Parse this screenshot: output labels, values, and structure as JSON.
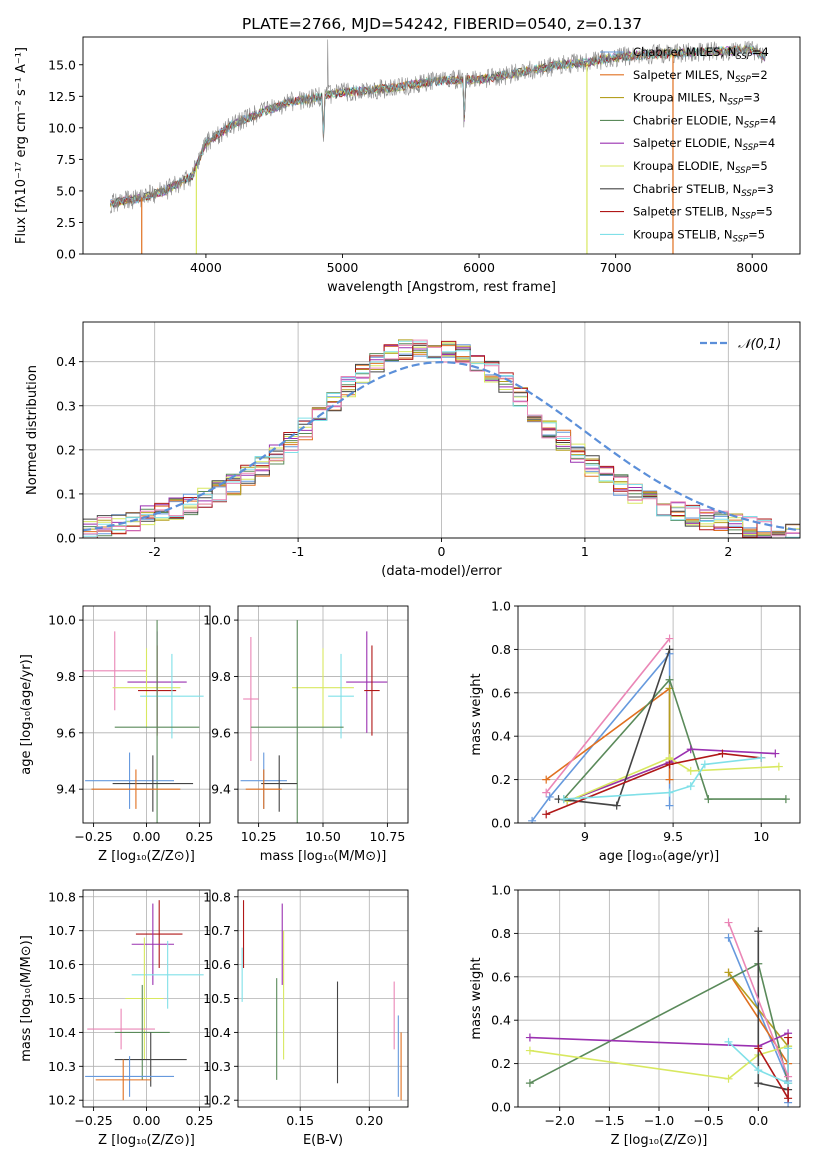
{
  "figure_title": "PLATE=2766, MJD=54242, FIBERID=0540, z=0.137",
  "colors": {
    "Chabrier MILES": "#6699dd",
    "Salpeter MILES": "#e07020",
    "Kroupa MILES": "#b5a020",
    "Chabrier ELODIE": "#5a8a5a",
    "Salpeter ELODIE": "#9a30b0",
    "Kroupa ELODIE": "#d8e860",
    "Chabrier STELIB": "#444444",
    "Salpeter STELIB": "#b01818",
    "Kroupa STELIB": "#80e0e8",
    "Pink": "#ea86b6",
    "Normal": "#5b8fd9",
    "Data": "#808080"
  },
  "chart_data": [
    {
      "id": "spectrum",
      "type": "line",
      "title": "PLATE=2766, MJD=54242, FIBERID=0540, z=0.137",
      "xlabel": "wavelength [Angstrom, rest frame]",
      "ylabel": "Flux [fλ10⁻¹⁷ erg cm⁻² s⁻¹ A⁻¹]",
      "xlim": [
        3100,
        8350
      ],
      "ylim": [
        0,
        17.2
      ],
      "xticks": [
        4000,
        5000,
        6000,
        7000,
        8000
      ],
      "yticks": [
        0.0,
        2.5,
        5.0,
        7.5,
        10.0,
        12.5,
        15.0
      ],
      "legend_position": "top-right",
      "legend": [
        {
          "label": "Chabrier MILES, N_SSP=4",
          "main": "Chabrier MILES, N",
          "sub": "SSP",
          "tail": "=4",
          "color": "Chabrier MILES"
        },
        {
          "label": "Salpeter MILES, N_SSP=2",
          "main": "Salpeter MILES, N",
          "sub": "SSP",
          "tail": "=2",
          "color": "Salpeter MILES"
        },
        {
          "label": "Kroupa MILES, N_SSP=3",
          "main": "Kroupa MILES, N",
          "sub": "SSP",
          "tail": "=3",
          "color": "Kroupa MILES"
        },
        {
          "label": "Chabrier ELODIE, N_SSP=4",
          "main": "Chabrier ELODIE, N",
          "sub": "SSP",
          "tail": "=4",
          "color": "Chabrier ELODIE"
        },
        {
          "label": "Salpeter ELODIE, N_SSP=4",
          "main": "Salpeter ELODIE, N",
          "sub": "SSP",
          "tail": "=4",
          "color": "Salpeter ELODIE"
        },
        {
          "label": "Kroupa ELODIE, N_SSP=5",
          "main": "Kroupa ELODIE, N",
          "sub": "SSP",
          "tail": "=5",
          "color": "Kroupa ELODIE"
        },
        {
          "label": "Chabrier STELIB, N_SSP=3",
          "main": "Chabrier STELIB, N",
          "sub": "SSP",
          "tail": "=3",
          "color": "Chabrier STELIB"
        },
        {
          "label": "Salpeter STELIB, N_SSP=5",
          "main": "Salpeter STELIB, N",
          "sub": "SSP",
          "tail": "=5",
          "color": "Salpeter STELIB"
        },
        {
          "label": "Kroupa STELIB, N_SSP=5",
          "main": "Kroupa STELIB, N",
          "sub": "SSP",
          "tail": "=5",
          "color": "Kroupa STELIB"
        }
      ],
      "continuum": {
        "x": [
          3300,
          3500,
          3700,
          3900,
          4000,
          4200,
          4400,
          4600,
          4800,
          5000,
          5200,
          5400,
          5600,
          5800,
          6000,
          6200,
          6400,
          6600,
          6800,
          7000,
          7200,
          7400,
          7600,
          8000,
          8100
        ],
        "y": [
          4.0,
          4.4,
          5.0,
          6.2,
          8.8,
          10.3,
          11.2,
          12.0,
          12.4,
          12.8,
          13.0,
          13.2,
          13.6,
          13.8,
          13.8,
          14.2,
          14.6,
          15.0,
          15.2,
          15.6,
          15.8,
          15.9,
          16.0,
          16.2,
          15.6
        ]
      },
      "dips": [
        {
          "x": 3530,
          "y": 0.0,
          "series": "Salpeter MILES"
        },
        {
          "x": 3930,
          "y": 0.0,
          "series": "Kroupa ELODIE"
        },
        {
          "x": 6790,
          "y": 0.0,
          "series": "Kroupa ELODIE"
        },
        {
          "x": 7420,
          "y": 0.0,
          "series": "Salpeter MILES"
        }
      ]
    },
    {
      "id": "residuals",
      "type": "histogram",
      "xlabel": "(data-model)/error",
      "ylabel": "Normed distribution",
      "xlim": [
        -2.5,
        2.5
      ],
      "ylim": [
        0,
        0.49
      ],
      "xticks": [
        -2,
        -1,
        0,
        1,
        2
      ],
      "yticks": [
        0.0,
        0.1,
        0.2,
        0.3,
        0.4
      ],
      "grid": true,
      "legend_position": "top-right",
      "legend": [
        {
          "label": "𝒩(0,1)",
          "color": "Normal"
        }
      ],
      "bin_edges": [
        -2.5,
        -2.4,
        -2.3,
        -2.2,
        -2.1,
        -2.0,
        -1.9,
        -1.8,
        -1.7,
        -1.6,
        -1.5,
        -1.4,
        -1.3,
        -1.2,
        -1.1,
        -1.0,
        -0.9,
        -0.8,
        -0.7,
        -0.6,
        -0.5,
        -0.4,
        -0.3,
        -0.2,
        -0.1,
        0.0,
        0.1,
        0.2,
        0.3,
        0.4,
        0.5,
        0.6,
        0.7,
        0.8,
        0.9,
        1.0,
        1.1,
        1.2,
        1.3,
        1.4,
        1.5,
        1.6,
        1.7,
        1.8,
        1.9,
        2.0,
        2.1,
        2.2,
        2.3,
        2.4,
        2.5
      ],
      "base_density": [
        0.022,
        0.028,
        0.033,
        0.04,
        0.048,
        0.057,
        0.067,
        0.078,
        0.09,
        0.105,
        0.123,
        0.142,
        0.165,
        0.19,
        0.218,
        0.248,
        0.28,
        0.312,
        0.342,
        0.37,
        0.395,
        0.415,
        0.428,
        0.433,
        0.43,
        0.424,
        0.415,
        0.4,
        0.378,
        0.35,
        0.318,
        0.285,
        0.252,
        0.22,
        0.19,
        0.163,
        0.14,
        0.12,
        0.102,
        0.087,
        0.073,
        0.061,
        0.051,
        0.043,
        0.036,
        0.03,
        0.025,
        0.021,
        0.018,
        0.015
      ],
      "series": [
        "Chabrier MILES",
        "Salpeter MILES",
        "Kroupa MILES",
        "Chabrier ELODIE",
        "Salpeter ELODIE",
        "Kroupa ELODIE",
        "Chabrier STELIB",
        "Salpeter STELIB",
        "Kroupa STELIB",
        "Pink"
      ]
    },
    {
      "id": "age_vs_Z",
      "type": "errorbar",
      "xlabel": "Z [log₁₀(Z/Z⊙)]",
      "ylabel": "age  [log₁₀(age/yr)]",
      "xlim": [
        -0.3,
        0.3
      ],
      "ylim": [
        9.28,
        10.05
      ],
      "xticks": [
        -0.25,
        0.0,
        0.25
      ],
      "xticklabels": [
        "−0.25",
        "0.00",
        "0.25"
      ],
      "yticks": [
        9.4,
        9.6,
        9.8,
        10.0
      ],
      "grid": true,
      "points": [
        {
          "series": "Pink",
          "x": -0.15,
          "xerr": 0.15,
          "y": 9.82,
          "yerr": 0.14
        },
        {
          "series": "Salpeter ELODIE",
          "x": 0.05,
          "xerr": 0.14,
          "y": 9.78,
          "yerr": 0.18
        },
        {
          "series": "Kroupa ELODIE",
          "x": 0.0,
          "xerr": 0.16,
          "y": 9.76,
          "yerr": 0.14
        },
        {
          "series": "Salpeter STELIB",
          "x": 0.05,
          "xerr": 0.09,
          "y": 9.75,
          "yerr": 0.16
        },
        {
          "series": "Kroupa STELIB",
          "x": 0.12,
          "xerr": 0.15,
          "y": 9.73,
          "yerr": 0.15
        },
        {
          "series": "Chabrier ELODIE",
          "x": 0.05,
          "xerr": 0.2,
          "y": 9.62,
          "yerr": 0.38
        },
        {
          "series": "Chabrier MILES",
          "x": -0.08,
          "xerr": 0.21,
          "y": 9.43,
          "yerr": 0.1
        },
        {
          "series": "Chabrier STELIB",
          "x": 0.03,
          "xerr": 0.19,
          "y": 9.42,
          "yerr": 0.1
        },
        {
          "series": "Salpeter MILES",
          "x": -0.05,
          "xerr": 0.21,
          "y": 9.4,
          "yerr": 0.07
        }
      ]
    },
    {
      "id": "age_vs_mass",
      "type": "errorbar",
      "xlabel": "mass [log₁₀(M/M⊙)]",
      "xlim": [
        10.17,
        10.83
      ],
      "ylim": [
        9.28,
        10.05
      ],
      "xticks": [
        10.25,
        10.5,
        10.75
      ],
      "xticklabels": [
        "10.25",
        "10.50",
        "10.75"
      ],
      "yticks": [
        9.4,
        9.6,
        9.8,
        10.0
      ],
      "grid": true,
      "points": [
        {
          "series": "Pink",
          "x": 10.22,
          "xerr": 0.03,
          "y": 9.72,
          "yerr": 0.22
        },
        {
          "series": "Salpeter ELODIE",
          "x": 10.67,
          "xerr": 0.08,
          "y": 9.78,
          "yerr": 0.18
        },
        {
          "series": "Kroupa ELODIE",
          "x": 10.5,
          "xerr": 0.12,
          "y": 9.76,
          "yerr": 0.14
        },
        {
          "series": "Salpeter STELIB",
          "x": 10.69,
          "xerr": 0.03,
          "y": 9.75,
          "yerr": 0.16
        },
        {
          "series": "Kroupa STELIB",
          "x": 10.57,
          "xerr": 0.05,
          "y": 9.73,
          "yerr": 0.15
        },
        {
          "series": "Chabrier ELODIE",
          "x": 10.4,
          "xerr": 0.18,
          "y": 9.62,
          "yerr": 0.38
        },
        {
          "series": "Chabrier MILES",
          "x": 10.27,
          "xerr": 0.09,
          "y": 9.43,
          "yerr": 0.1
        },
        {
          "series": "Chabrier STELIB",
          "x": 10.33,
          "xerr": 0.07,
          "y": 9.42,
          "yerr": 0.1
        },
        {
          "series": "Salpeter MILES",
          "x": 10.27,
          "xerr": 0.07,
          "y": 9.4,
          "yerr": 0.07
        }
      ]
    },
    {
      "id": "weight_vs_age",
      "type": "line",
      "xlabel": "age  [log₁₀(age/yr)]",
      "ylabel": "mass weight",
      "xlim": [
        8.62,
        10.22
      ],
      "ylim": [
        0,
        1.0
      ],
      "xticks": [
        9.0,
        9.5,
        10.0
      ],
      "yticks": [
        0.0,
        0.2,
        0.4,
        0.6,
        0.8,
        1.0
      ],
      "grid": true,
      "series": [
        {
          "color": "Chabrier MILES",
          "x": [
            8.7,
            8.8,
            9.48,
            9.48
          ],
          "y": [
            0.01,
            0.12,
            0.78,
            0.08
          ]
        },
        {
          "color": "Salpeter MILES",
          "x": [
            8.78,
            9.48,
            9.48
          ],
          "y": [
            0.2,
            0.62,
            0.2
          ]
        },
        {
          "color": "Kroupa MILES",
          "x": [
            8.9,
            9.48,
            9.48
          ],
          "y": [
            0.1,
            0.28,
            0.62
          ]
        },
        {
          "color": "Chabrier ELODIE",
          "x": [
            8.88,
            9.48,
            9.7,
            10.14
          ],
          "y": [
            0.11,
            0.66,
            0.11,
            0.11
          ]
        },
        {
          "color": "Salpeter ELODIE",
          "x": [
            8.9,
            9.48,
            9.6,
            10.08
          ],
          "y": [
            0.1,
            0.28,
            0.34,
            0.32
          ]
        },
        {
          "color": "Kroupa ELODIE",
          "x": [
            8.9,
            9.48,
            9.6,
            10.1
          ],
          "y": [
            0.1,
            0.3,
            0.24,
            0.26
          ]
        },
        {
          "color": "Chabrier STELIB",
          "x": [
            8.85,
            9.18,
            9.48
          ],
          "y": [
            0.11,
            0.08,
            0.8
          ]
        },
        {
          "color": "Salpeter STELIB",
          "x": [
            8.78,
            9.48,
            9.78,
            10.0
          ],
          "y": [
            0.04,
            0.27,
            0.32,
            0.3
          ]
        },
        {
          "color": "Kroupa STELIB",
          "x": [
            8.88,
            9.48,
            9.6,
            9.68,
            10.0
          ],
          "y": [
            0.11,
            0.14,
            0.17,
            0.27,
            0.3
          ]
        },
        {
          "color": "Pink",
          "x": [
            8.78,
            9.48
          ],
          "y": [
            0.14,
            0.85
          ]
        }
      ]
    },
    {
      "id": "mass_vs_Z",
      "type": "errorbar",
      "xlabel": "Z [log₁₀(Z/Z⊙)]",
      "ylabel": "mass [log₁₀(M/M⊙)]",
      "xlim": [
        -0.3,
        0.3
      ],
      "ylim": [
        10.18,
        10.82
      ],
      "xticks": [
        -0.25,
        0.0,
        0.25
      ],
      "xticklabels": [
        "−0.25",
        "0.00",
        "0.25"
      ],
      "yticks": [
        10.2,
        10.3,
        10.4,
        10.5,
        10.6,
        10.7,
        10.8
      ],
      "grid": true,
      "points": [
        {
          "series": "Salpeter STELIB",
          "x": 0.06,
          "xerr": 0.11,
          "y": 10.69,
          "yerr": 0.1
        },
        {
          "series": "Salpeter ELODIE",
          "x": 0.03,
          "xerr": 0.1,
          "y": 10.66,
          "yerr": 0.12
        },
        {
          "series": "Kroupa STELIB",
          "x": 0.1,
          "xerr": 0.17,
          "y": 10.57,
          "yerr": 0.1
        },
        {
          "series": "Kroupa ELODIE",
          "x": -0.01,
          "xerr": 0.09,
          "y": 10.5,
          "yerr": 0.18
        },
        {
          "series": "Pink",
          "x": -0.12,
          "xerr": 0.16,
          "y": 10.41,
          "yerr": 0.06
        },
        {
          "series": "Chabrier ELODIE",
          "x": -0.02,
          "xerr": 0.13,
          "y": 10.4,
          "yerr": 0.14
        },
        {
          "series": "Chabrier STELIB",
          "x": 0.02,
          "xerr": 0.17,
          "y": 10.32,
          "yerr": 0.08
        },
        {
          "series": "Chabrier MILES",
          "x": -0.08,
          "xerr": 0.21,
          "y": 10.27,
          "yerr": 0.06
        },
        {
          "series": "Salpeter MILES",
          "x": -0.11,
          "xerr": 0.13,
          "y": 10.26,
          "yerr": 0.06
        }
      ]
    },
    {
      "id": "mass_vs_EBV",
      "type": "errorbar",
      "xlabel": "E(B-V)",
      "xlim": [
        0.105,
        0.228
      ],
      "ylim": [
        10.18,
        10.82
      ],
      "xticks": [
        0.15,
        0.2
      ],
      "xticklabels": [
        "0.15",
        "0.20"
      ],
      "yticks": [
        10.2,
        10.3,
        10.4,
        10.5,
        10.6,
        10.7,
        10.8
      ],
      "grid": true,
      "points": [
        {
          "series": "Salpeter STELIB",
          "x": 0.109,
          "y": 10.69,
          "yerr": 0.1
        },
        {
          "series": "Kroupa STELIB",
          "x": 0.108,
          "y": 10.57,
          "yerr": 0.08
        },
        {
          "series": "Salpeter ELODIE",
          "x": 0.137,
          "y": 10.66,
          "yerr": 0.12
        },
        {
          "series": "Kroupa ELODIE",
          "x": 0.138,
          "y": 10.51,
          "yerr": 0.19
        },
        {
          "series": "Chabrier ELODIE",
          "x": 0.133,
          "y": 10.41,
          "yerr": 0.15
        },
        {
          "series": "Chabrier STELIB",
          "x": 0.177,
          "y": 10.4,
          "yerr": 0.15
        },
        {
          "series": "Pink",
          "x": 0.218,
          "y": 10.45,
          "yerr": 0.1
        },
        {
          "series": "Salpeter MILES",
          "x": 0.223,
          "y": 10.3,
          "yerr": 0.1
        },
        {
          "series": "Chabrier MILES",
          "x": 0.221,
          "y": 10.33,
          "yerr": 0.12
        }
      ]
    },
    {
      "id": "weight_vs_Z",
      "type": "line",
      "xlabel": "Z [log₁₀(Z/Z⊙)]",
      "ylabel": "mass weight",
      "xlim": [
        -2.42,
        0.42
      ],
      "ylim": [
        0,
        1.0
      ],
      "xticks": [
        -2.0,
        -1.5,
        -1.0,
        -0.5,
        0.0
      ],
      "xticklabels": [
        "−2.0",
        "−1.5",
        "−1.0",
        "−0.5",
        "0.0"
      ],
      "yticks": [
        0.0,
        0.2,
        0.4,
        0.6,
        0.8,
        1.0
      ],
      "grid": true,
      "series": [
        {
          "color": "Chabrier MILES",
          "x": [
            -0.3,
            0.3,
            0.3
          ],
          "y": [
            0.78,
            0.12,
            0.02
          ]
        },
        {
          "color": "Salpeter MILES",
          "x": [
            -0.3,
            0.3
          ],
          "y": [
            0.62,
            0.2
          ]
        },
        {
          "color": "Kroupa MILES",
          "x": [
            -0.3,
            0.3
          ],
          "y": [
            0.62,
            0.28
          ]
        },
        {
          "color": "Chabrier ELODIE",
          "x": [
            -2.3,
            0.0,
            0.3
          ],
          "y": [
            0.11,
            0.66,
            0.11
          ]
        },
        {
          "color": "Salpeter ELODIE",
          "x": [
            -2.3,
            0.0,
            0.3
          ],
          "y": [
            0.32,
            0.28,
            0.34
          ]
        },
        {
          "color": "Kroupa ELODIE",
          "x": [
            -2.3,
            -0.3,
            0.0,
            0.3
          ],
          "y": [
            0.26,
            0.13,
            0.24,
            0.28
          ]
        },
        {
          "color": "Chabrier STELIB",
          "x": [
            0.0,
            0.0,
            0.3
          ],
          "y": [
            0.81,
            0.11,
            0.08
          ]
        },
        {
          "color": "Salpeter STELIB",
          "x": [
            0.0,
            0.3,
            0.3
          ],
          "y": [
            0.27,
            0.04,
            0.32
          ]
        },
        {
          "color": "Kroupa STELIB",
          "x": [
            -0.3,
            0.0,
            0.3,
            0.3
          ],
          "y": [
            0.3,
            0.17,
            0.11,
            0.27
          ]
        },
        {
          "color": "Pink",
          "x": [
            -0.3,
            0.3
          ],
          "y": [
            0.85,
            0.14
          ]
        }
      ]
    }
  ]
}
